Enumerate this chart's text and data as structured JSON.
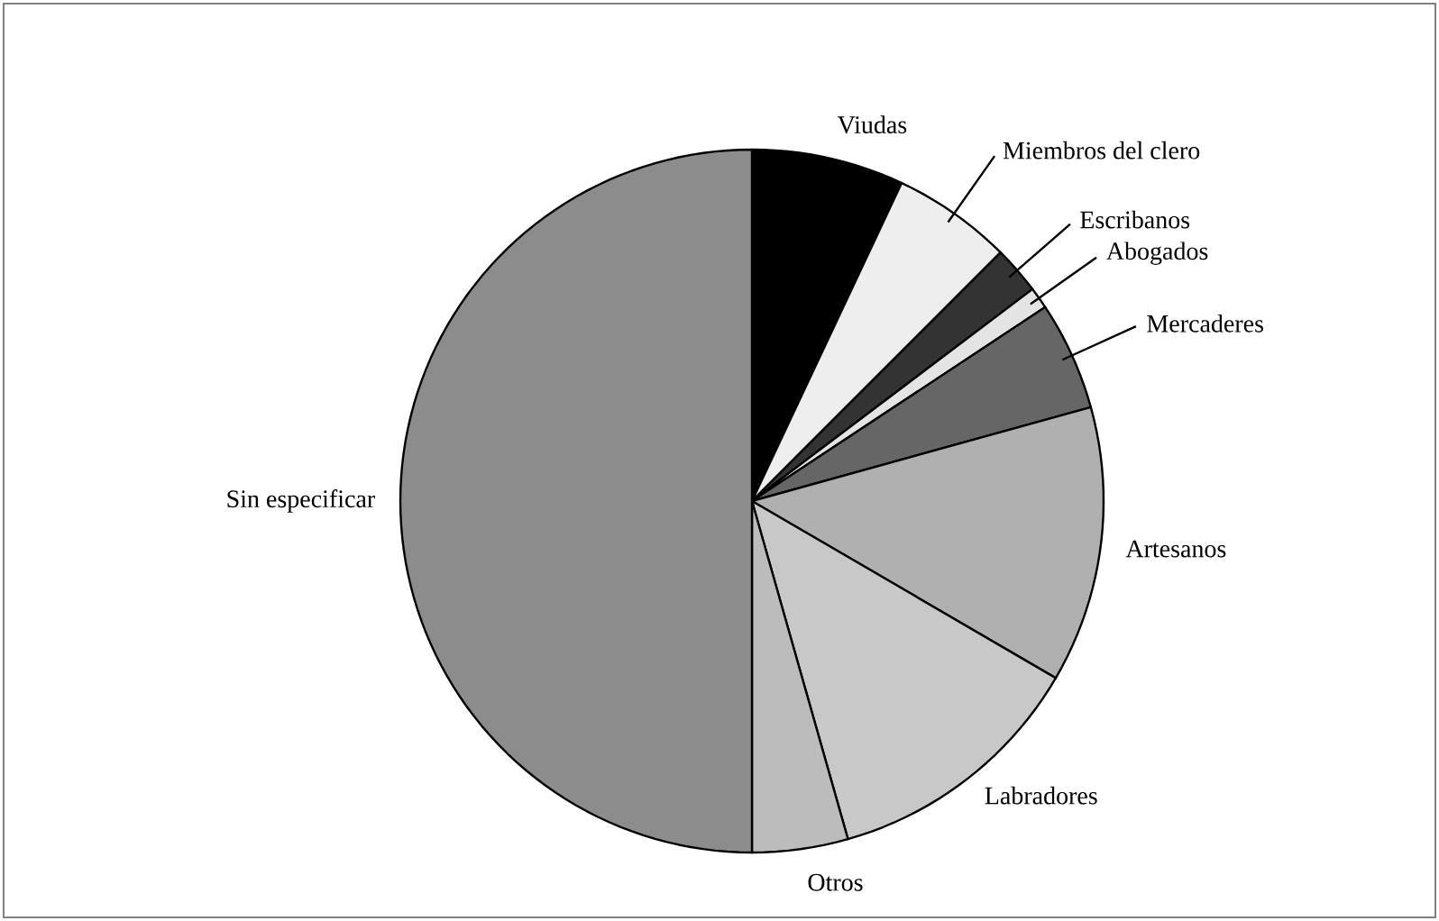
{
  "chart_data": {
    "type": "pie",
    "categories": [
      "Viudas",
      "Miembros del clero",
      "Escribanos",
      "Abogados",
      "Mercaderes",
      "Artesanos",
      "Labradores",
      "Otros",
      "Sin especificar"
    ],
    "values": [
      7,
      5.5,
      2.2,
      1,
      5,
      12.7,
      12.2,
      4.4,
      50
    ],
    "colors": [
      "#000000",
      "#eeeeee",
      "#333333",
      "#e4e4e4",
      "#666666",
      "#b0b0b0",
      "#c8c8c8",
      "#bcbcbc",
      "#8c8c8c"
    ]
  }
}
